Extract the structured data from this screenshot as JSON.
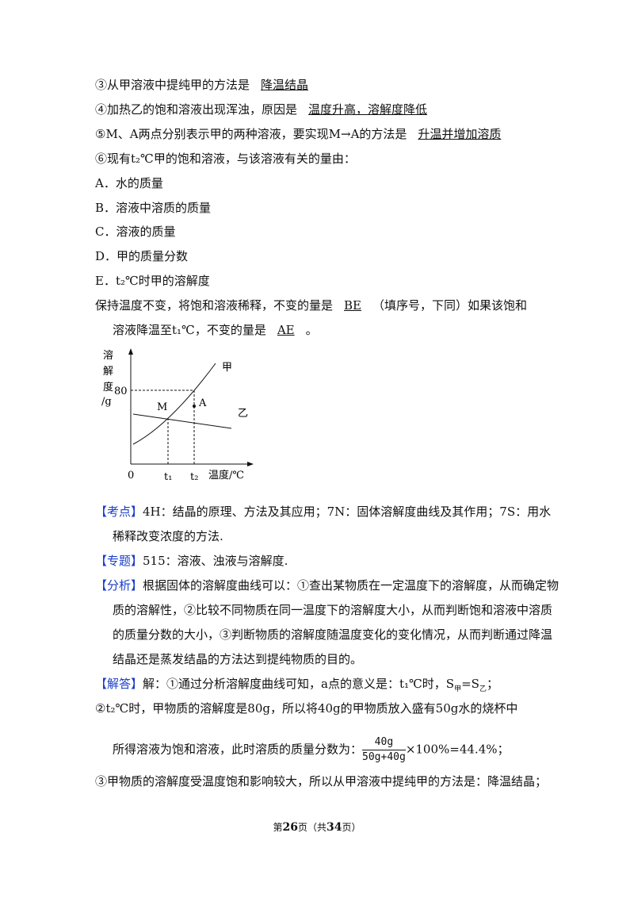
{
  "answers": [
    {
      "text": "③从甲溶液中提纯甲的方法是",
      "answer": "降温结晶"
    },
    {
      "text": "④加热乙的饱和溶液出现浑浊，原因是",
      "answer": "温度升高，溶解度降低"
    },
    {
      "text": "⑤M、A两点分别表示甲的两种溶液，要实现M→A的方法是",
      "answer": "升温并增加溶质"
    }
  ],
  "question": "⑥现有t₂℃甲的饱和溶液，与该溶液有关的量由：",
  "options": [
    "A．水的质量",
    "B．溶液中溶质的质量",
    "C．溶液的质量",
    "D．甲的质量分数",
    "E．t₂℃时甲的溶解度"
  ],
  "keep": {
    "before": "保持温度不变，将饱和溶液稀释，不变的量是",
    "answer1": "BE",
    "middle1": "（填序号，下同）如果该饱和",
    "middle2": "溶液降温至t₁℃，不变的量是",
    "answer2": "AE",
    "after": "。"
  },
  "graph": {
    "y_label": [
      "溶",
      "解",
      "度",
      "/g"
    ],
    "y_mark": "80",
    "origin": "0",
    "t1": "t₁",
    "t2": "t₂",
    "x_label": "温度/℃",
    "point_m": "M",
    "point_a": "A",
    "curve_jia": "甲",
    "curve_yi": "乙"
  },
  "kaodian": {
    "tag": "【考点】",
    "text": "4H：结晶的原理、方法及其应用；7N：固体溶解度曲线及其作用；7S：用水稀释改变浓度的方法."
  },
  "zhuanti": {
    "tag": "【专题】",
    "text": "515：溶液、浊液与溶解度."
  },
  "fenxi": {
    "tag": "【分析】",
    "text": "根据固体的溶解度曲线可以：①查出某物质在一定温度下的溶解度，从而确定物质的溶解性，②比较不同物质在同一温度下的溶解度大小，从而判断饱和溶液中溶质的质量分数的大小，③判断物质的溶解度随温度变化的变化情况，从而判断通过降温结晶还是蒸发结晶的方法达到提纯物质的目的。"
  },
  "jieda": {
    "tag": "【解答】",
    "parts": [
      "解：①通过分析溶解度曲线可知，a点的意义是：t₁℃时，S",
      "甲",
      "=S",
      "乙",
      "；"
    ]
  },
  "step2": {
    "line1": "②t₂℃时，甲物质的溶解度是80g，所以将40g的甲物质放入盛有50g水的烧杯中",
    "line2": "所得溶液为饱和溶液，此时溶质的质量分数为：",
    "numerator": "40g",
    "denominator": "50g+40g",
    "result": "×100%=44.4%；"
  },
  "step3": "③甲物质的溶解度受温度饱和影响较大，所以从甲溶液中提纯甲的方法是：降温结晶；",
  "footer": [
    "第",
    "26",
    "页（共",
    "34",
    "页）"
  ]
}
